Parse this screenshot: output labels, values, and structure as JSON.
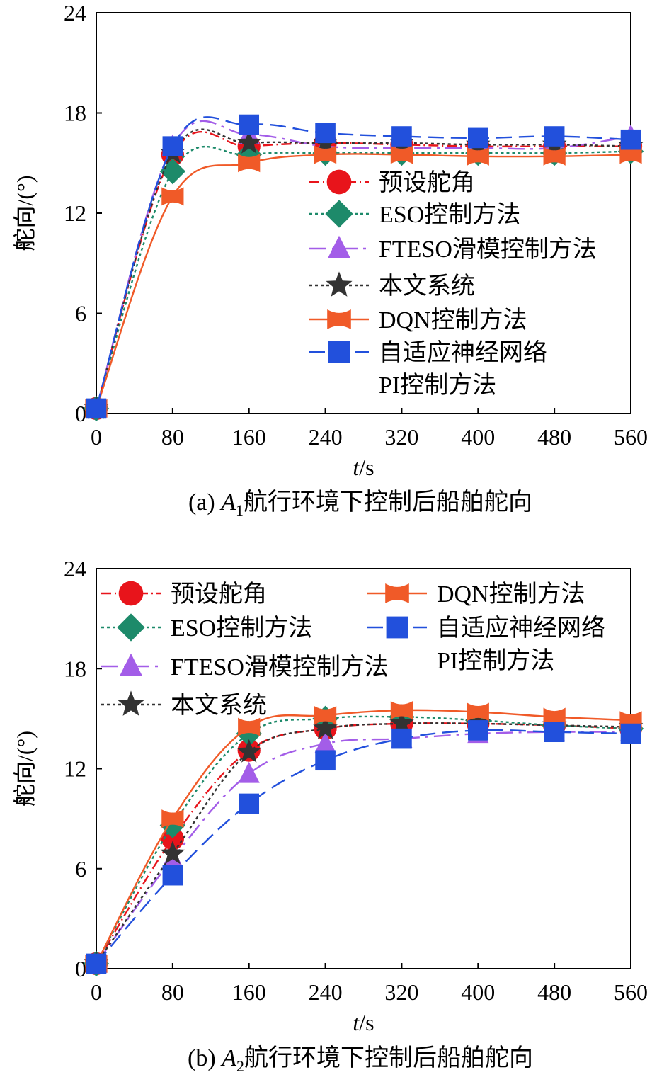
{
  "chart_data": [
    {
      "type": "line",
      "panel": "(a)",
      "caption_prefix": "(a) ",
      "caption_var": "A",
      "caption_sub": "1",
      "caption_text": "航行环境下控制后船舶舵向",
      "xlabel_var": "t",
      "xlabel_unit": "/s",
      "ylabel": "舵向/(°)",
      "xlim": [
        0,
        560
      ],
      "ylim": [
        0,
        24
      ],
      "xticks": [
        "0",
        "80",
        "160",
        "240",
        "320",
        "400",
        "480",
        "560"
      ],
      "yticks": [
        "0",
        "6",
        "12",
        "18",
        "24"
      ],
      "x": [
        0,
        80,
        160,
        240,
        320,
        400,
        480,
        560
      ],
      "series": [
        {
          "name": "预设舵角",
          "color": "#e8141b",
          "marker": "circle",
          "dash": "14,5,2,5",
          "values": [
            0.3,
            15.5,
            16.0,
            16.2,
            16.1,
            16.0,
            16.0,
            16.0
          ]
        },
        {
          "name": "ESO控制方法",
          "color": "#1d8a6a",
          "marker": "diamond",
          "dash": "4,4",
          "values": [
            0.3,
            14.5,
            15.5,
            15.6,
            15.6,
            15.6,
            15.6,
            15.7
          ]
        },
        {
          "name": "FTESO滑模控制方法",
          "color": "#a35de8",
          "marker": "triangle",
          "dash": "24,8,4,8",
          "values": [
            0.3,
            16.0,
            16.7,
            16.0,
            15.9,
            15.9,
            15.9,
            16.6
          ]
        },
        {
          "name": "本文系统",
          "color": "#333333",
          "marker": "star",
          "dash": "4,4",
          "values": [
            0.3,
            15.6,
            16.2,
            16.2,
            16.2,
            16.1,
            16.1,
            16.0
          ]
        },
        {
          "name": "DQN控制方法",
          "color": "#f05a28",
          "marker": "bowtie",
          "dash": "",
          "values": [
            0.3,
            13.0,
            15.0,
            15.5,
            15.5,
            15.4,
            15.4,
            15.5
          ]
        },
        {
          "name": "自适应神经网络",
          "name2": "PI控制方法",
          "color": "#2250dc",
          "marker": "square",
          "dash": "22,10",
          "values": [
            0.3,
            16.0,
            17.3,
            16.8,
            16.6,
            16.5,
            16.6,
            16.4
          ]
        }
      ]
    },
    {
      "type": "line",
      "panel": "(b)",
      "caption_prefix": "(b) ",
      "caption_var": "A",
      "caption_sub": "2",
      "caption_text": "航行环境下控制后船舶舵向",
      "xlabel_var": "t",
      "xlabel_unit": "/s",
      "ylabel": "舵向/(°)",
      "xlim": [
        0,
        560
      ],
      "ylim": [
        0,
        24
      ],
      "xticks": [
        "0",
        "80",
        "160",
        "240",
        "320",
        "400",
        "480",
        "560"
      ],
      "yticks": [
        "0",
        "6",
        "12",
        "18",
        "24"
      ],
      "x": [
        0,
        80,
        160,
        240,
        320,
        400,
        480,
        560
      ],
      "series": [
        {
          "name": "预设舵角",
          "color": "#e8141b",
          "marker": "circle",
          "dash": "14,5,2,5",
          "values": [
            0.3,
            7.8,
            13.1,
            14.4,
            14.7,
            14.7,
            14.6,
            14.4
          ]
        },
        {
          "name": "ESO控制方法",
          "color": "#1d8a6a",
          "marker": "diamond",
          "dash": "4,4",
          "values": [
            0.3,
            8.6,
            14.1,
            15.0,
            15.1,
            14.9,
            14.6,
            14.4
          ]
        },
        {
          "name": "FTESO滑模控制方法",
          "color": "#a35de8",
          "marker": "triangle",
          "dash": "24,8,4,8",
          "values": [
            0.3,
            6.6,
            11.7,
            13.5,
            13.8,
            14.1,
            14.2,
            14.2
          ]
        },
        {
          "name": "本文系统",
          "color": "#333333",
          "marker": "star",
          "dash": "4,4",
          "values": [
            0.3,
            6.9,
            13.0,
            14.4,
            14.7,
            14.7,
            14.6,
            14.5
          ]
        },
        {
          "name": "DQN控制方法",
          "color": "#f05a28",
          "marker": "bowtie",
          "dash": "",
          "values": [
            0.3,
            9.0,
            14.5,
            15.2,
            15.5,
            15.4,
            15.1,
            14.9
          ]
        },
        {
          "name": "自适应神经网络",
          "name2": "PI控制方法",
          "color": "#2250dc",
          "marker": "square",
          "dash": "22,10",
          "values": [
            0.3,
            5.6,
            9.9,
            12.5,
            13.8,
            14.3,
            14.2,
            14.1
          ]
        }
      ]
    }
  ]
}
